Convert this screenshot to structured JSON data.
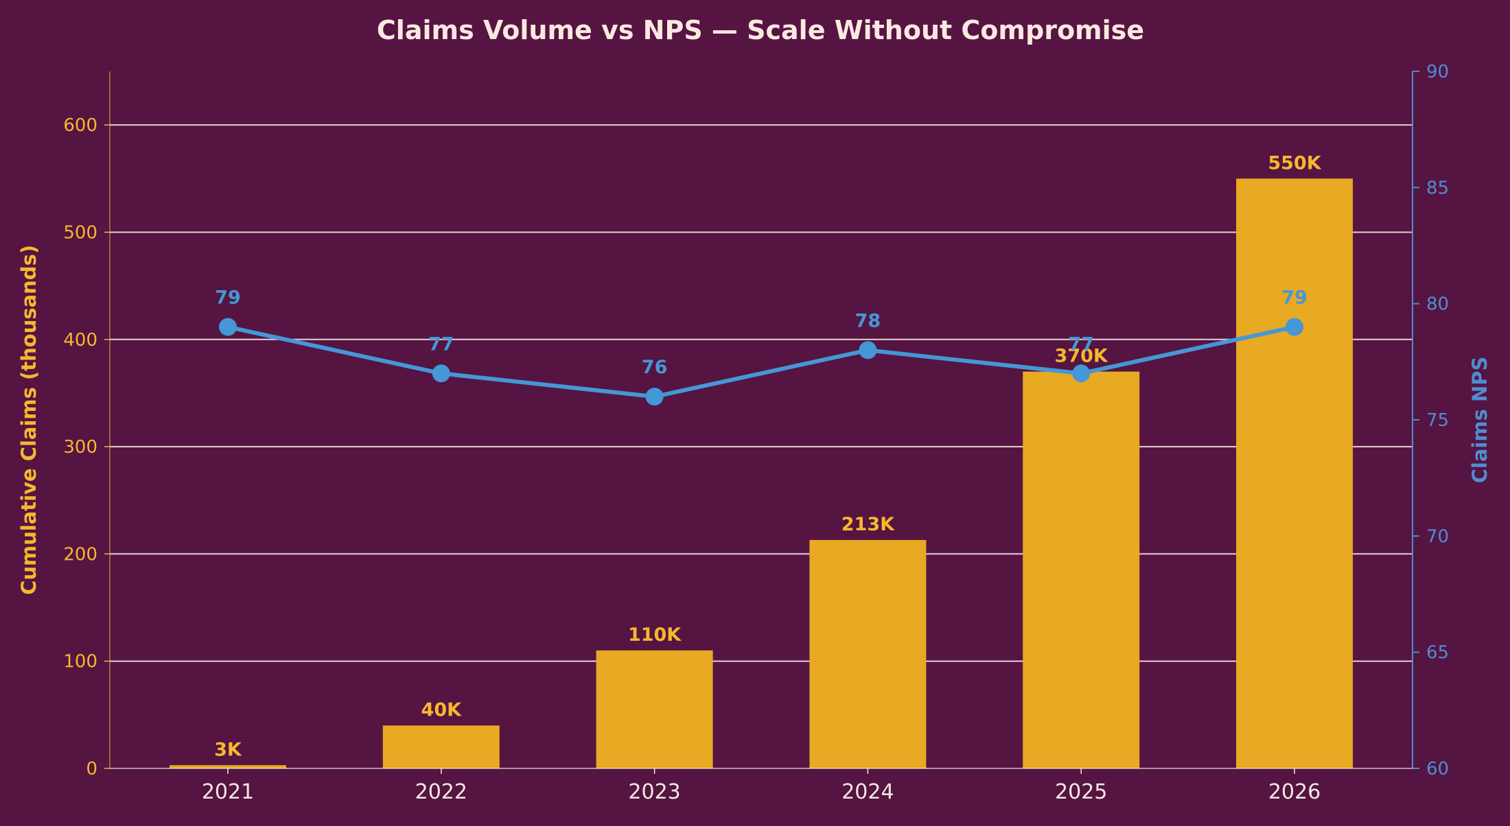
{
  "chart_data": {
    "type": "bar+line",
    "title": "Claims Volume vs NPS — Scale Without Compromise",
    "categories": [
      "2021",
      "2022",
      "2023",
      "2024",
      "2025",
      "2026"
    ],
    "series": [
      {
        "name": "Cumulative Claims (thousands)",
        "type": "bar",
        "axis": "left",
        "values": [
          3,
          40,
          110,
          213,
          370,
          550
        ],
        "labels": [
          "3K",
          "40K",
          "110K",
          "213K",
          "370K",
          "550K"
        ]
      },
      {
        "name": "Claims NPS",
        "type": "line",
        "axis": "right",
        "values": [
          79,
          77,
          76,
          78,
          77,
          79
        ],
        "labels": [
          "79",
          "77",
          "76",
          "78",
          "77",
          "79"
        ]
      }
    ],
    "y_left": {
      "label": "Cumulative Claims (thousands)",
      "range": [
        0,
        650
      ],
      "ticks": [
        0,
        100,
        200,
        300,
        400,
        500,
        600
      ],
      "tick_labels": [
        "0",
        "100",
        "200",
        "300",
        "400",
        "500",
        "600"
      ]
    },
    "y_right": {
      "label": "Claims NPS",
      "range": [
        60,
        90
      ],
      "ticks": [
        60,
        65,
        70,
        75,
        80,
        85,
        90
      ],
      "tick_labels": [
        "60",
        "65",
        "70",
        "75",
        "80",
        "85",
        "90"
      ]
    },
    "grid": true
  },
  "colors": {
    "background": "#551441",
    "bar": "#E8A923",
    "bar_label": "#F5B82E",
    "line": "#4597D6",
    "left_axis": "#F5B82E",
    "right_axis": "#4F8DD0",
    "grid": "#F3E9E3",
    "title": "#FBE8E0",
    "x_tick": "#F3E9E3"
  }
}
